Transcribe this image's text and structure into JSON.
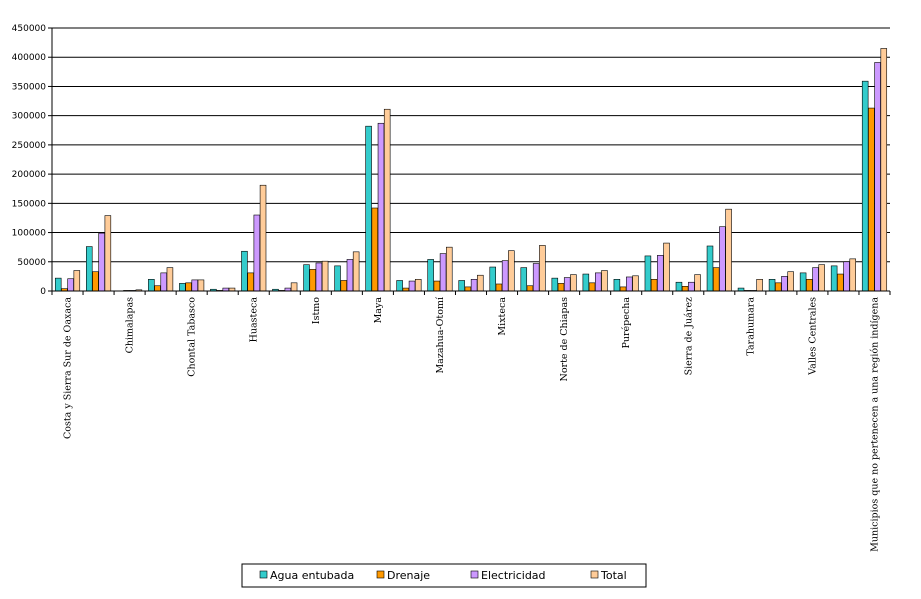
{
  "chart_data": {
    "type": "bar",
    "title": "",
    "xlabel": "",
    "ylabel": "",
    "ylim": [
      0,
      450000
    ],
    "yticks": [
      0,
      50000,
      100000,
      150000,
      200000,
      250000,
      300000,
      350000,
      400000,
      450000
    ],
    "ytick_labels": [
      "0",
      "50000",
      "100000",
      "150000",
      "200000",
      "250000",
      "300000",
      "350000",
      "400000",
      "450000"
    ],
    "grid": true,
    "legend_position": "bottom",
    "categories": [
      "Costa y Sierra Sur de Oaxaca",
      "",
      "Chimalapas",
      "",
      "Chontal Tabasco",
      "",
      "Huasteca",
      "",
      "Istmo",
      "",
      "Maya",
      "",
      "Mazahua-Otomí",
      "",
      "Mixteca",
      "",
      "Norte de Chiapas",
      "",
      "Purépecha",
      "",
      "Sierra de Juárez",
      "",
      "Tarahumara",
      "",
      "Valles Centrales",
      "",
      "Municipios que no pertenecen a una región indígena"
    ],
    "series": [
      {
        "name": "Agua entubada",
        "color": "#33cccc",
        "values": [
          22000,
          76000,
          0,
          20000,
          13000,
          3000,
          68000,
          3000,
          45000,
          43000,
          282000,
          18000,
          54000,
          18000,
          41000,
          40000,
          22000,
          29000,
          20000,
          60000,
          15000,
          77000,
          5000,
          20000,
          31000,
          43000,
          359000
        ]
      },
      {
        "name": "Drenaje",
        "color": "#ff9900",
        "values": [
          4000,
          33000,
          1000,
          9000,
          14000,
          1000,
          31000,
          1000,
          37000,
          18000,
          142000,
          5000,
          17000,
          7000,
          12000,
          9000,
          13000,
          14000,
          7000,
          20000,
          8000,
          40000,
          1000,
          14000,
          20000,
          29000,
          313000
        ]
      },
      {
        "name": "Electricidad",
        "color": "#cc99ff",
        "values": [
          21000,
          99000,
          1000,
          31000,
          19000,
          5000,
          130000,
          5000,
          48000,
          54000,
          287000,
          17000,
          64000,
          20000,
          52000,
          47000,
          23000,
          31000,
          24000,
          61000,
          15000,
          110000,
          1000,
          25000,
          40000,
          50000,
          391000
        ]
      },
      {
        "name": "Total",
        "color": "#ffcc99",
        "values": [
          35000,
          129000,
          2000,
          40000,
          19000,
          5000,
          181000,
          14000,
          51000,
          67000,
          311000,
          20000,
          75000,
          27000,
          69000,
          78000,
          28000,
          35000,
          26000,
          82000,
          28000,
          140000,
          20000,
          33000,
          45000,
          55000,
          415000
        ]
      }
    ]
  }
}
